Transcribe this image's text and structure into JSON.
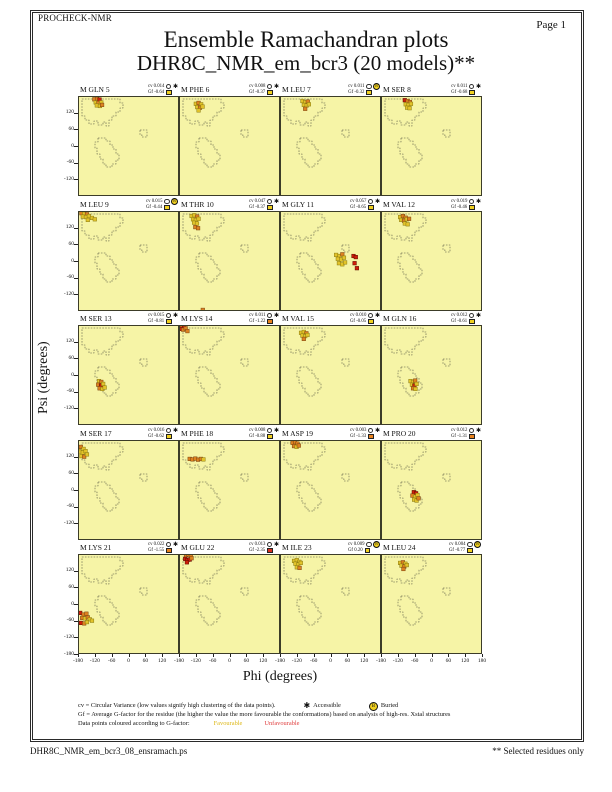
{
  "page": {
    "app_label": "PROCHECK-NMR",
    "page_label": "Page 1",
    "title": "Ensemble Ramachandran plots",
    "subtitle": "DHR8C_NMR_em_bcr3 (20 models)**",
    "footer_left": "DHR8C_NMR_em_bcr3_08_ensramach.ps",
    "footer_right": "** Selected residues only"
  },
  "labels": {
    "cv_prefix": "cv",
    "gf_prefix": "Gf"
  },
  "icons": {
    "accessible": "black-asterisk-star",
    "buried": "yellow-circled-b",
    "cv_qualifier": "small-open-circle"
  },
  "colors": {
    "plot_bg": "#f6f4a6",
    "point_yellow": "#e2c32a",
    "point_orange": "#dd8220",
    "point_red": "#cf1d0a",
    "region_outline": "#4a4a3a",
    "favourable_text": "#ddb818",
    "unfavourable_text": "#e04040"
  },
  "legend": {
    "cv_line": "cv = Circular Variance (low values signify high clustering of the data points).",
    "accessible_label": "Accessible",
    "buried_label": "Buried",
    "gf_line": "Gf = Average G-factor for the residue (the higher the value the more favourable the conformations) based on analysis of high-res. Xstal structures",
    "points_line": "Data points coloured according to G-factor:",
    "favourable_label": "Favourable",
    "unfavourable_label": "Unfavourable"
  },
  "chart_data": {
    "type": "scatter",
    "layout": "4x5-grid-ramachandran",
    "xlabel": "Phi (degrees)",
    "ylabel": "Psi (degrees)",
    "x_range": [
      -180,
      180
    ],
    "y_range": [
      -180,
      180
    ],
    "x_ticks": [
      -180,
      -120,
      -60,
      0,
      60,
      120
    ],
    "x_end_tick": 180,
    "y_ticks": [
      120,
      60,
      0,
      -60,
      -120
    ],
    "y_bottom_tick": -180,
    "point_colour_key": {
      "y": "favourable-yellow",
      "o": "mid-orange",
      "r": "unfavourable-red"
    },
    "subplots": [
      {
        "residue": "M GLN 5",
        "cv": "0.014",
        "gf": "-0.64",
        "access": "accessible",
        "gf_color": "yellow",
        "points": [
          [
            -122,
            168,
            "o"
          ],
          [
            -112,
            170,
            "o"
          ],
          [
            -103,
            167,
            "r"
          ],
          [
            -117,
            157,
            "y"
          ],
          [
            -107,
            155,
            "o"
          ],
          [
            -97,
            157,
            "y"
          ],
          [
            -113,
            146,
            "y"
          ],
          [
            -102,
            144,
            "y"
          ],
          [
            -94,
            148,
            "o"
          ]
        ]
      },
      {
        "residue": "M PHE 6",
        "cv": "0.008",
        "gf": "-0.37",
        "access": "accessible",
        "gf_color": "yellow",
        "points": [
          [
            -120,
            152,
            "y"
          ],
          [
            -110,
            155,
            "o"
          ],
          [
            -101,
            150,
            "y"
          ],
          [
            -115,
            140,
            "y"
          ],
          [
            -105,
            138,
            "o"
          ],
          [
            -96,
            142,
            "y"
          ],
          [
            -110,
            128,
            "y"
          ]
        ]
      },
      {
        "residue": "M LEU 7",
        "cv": "0.011",
        "gf": "-0.32",
        "access": "buried",
        "gf_color": "yellow",
        "points": [
          [
            -100,
            162,
            "y"
          ],
          [
            -90,
            158,
            "y"
          ],
          [
            -81,
            160,
            "o"
          ],
          [
            -95,
            148,
            "y"
          ],
          [
            -85,
            146,
            "y"
          ],
          [
            -77,
            150,
            "y"
          ],
          [
            -90,
            134,
            "o"
          ]
        ]
      },
      {
        "residue": "M SER 8",
        "cv": "0.011",
        "gf": "-0.68",
        "access": "accessible",
        "gf_color": "yellow",
        "points": [
          [
            -95,
            165,
            "r"
          ],
          [
            -85,
            162,
            "o"
          ],
          [
            -77,
            158,
            "o"
          ],
          [
            -92,
            150,
            "y"
          ],
          [
            -82,
            148,
            "y"
          ],
          [
            -73,
            152,
            "y"
          ],
          [
            -87,
            138,
            "y"
          ],
          [
            -78,
            136,
            "y"
          ]
        ]
      },
      {
        "residue": "M LEU 9",
        "cv": "0.015",
        "gf": "-0.44",
        "access": "buried",
        "gf_color": "yellow",
        "points": [
          [
            -168,
            172,
            "o"
          ],
          [
            -158,
            170,
            "y"
          ],
          [
            -148,
            168,
            "o"
          ],
          [
            -163,
            160,
            "y"
          ],
          [
            -152,
            158,
            "y"
          ],
          [
            -141,
            162,
            "y"
          ],
          [
            -130,
            155,
            "y"
          ],
          [
            -120,
            150,
            "y"
          ],
          [
            -145,
            148,
            "y"
          ]
        ]
      },
      {
        "residue": "M THR 10",
        "cv": "0.047",
        "gf": "-0.37",
        "access": "accessible",
        "gf_color": "yellow",
        "points": [
          [
            -135,
            162,
            "y"
          ],
          [
            -125,
            165,
            "y"
          ],
          [
            -115,
            160,
            "o"
          ],
          [
            -130,
            150,
            "y"
          ],
          [
            -120,
            148,
            "y"
          ],
          [
            -110,
            152,
            "y"
          ],
          [
            -126,
            138,
            "y"
          ],
          [
            -116,
            135,
            "y"
          ],
          [
            -122,
            122,
            "o"
          ],
          [
            -112,
            118,
            "o"
          ],
          [
            -95,
            -176,
            "o"
          ]
        ]
      },
      {
        "residue": "M GLY 11",
        "cv": "0.057",
        "gf": "-0.65",
        "access": "accessible",
        "gf_color": "yellow",
        "points": [
          [
            20,
            22,
            "y"
          ],
          [
            32,
            18,
            "y"
          ],
          [
            42,
            24,
            "o"
          ],
          [
            26,
            8,
            "y"
          ],
          [
            38,
            5,
            "y"
          ],
          [
            48,
            12,
            "y"
          ],
          [
            30,
            -8,
            "y"
          ],
          [
            42,
            -12,
            "y"
          ],
          [
            52,
            -5,
            "y"
          ],
          [
            82,
            18,
            "r"
          ],
          [
            90,
            14,
            "r"
          ],
          [
            86,
            -8,
            "r"
          ],
          [
            94,
            -26,
            "r"
          ]
        ]
      },
      {
        "residue": "M VAL 12",
        "cv": "0.019",
        "gf": "-0.46",
        "access": "accessible",
        "gf_color": "yellow",
        "points": [
          [
            -112,
            158,
            "y"
          ],
          [
            -102,
            162,
            "o"
          ],
          [
            -92,
            156,
            "o"
          ],
          [
            -108,
            148,
            "y"
          ],
          [
            -98,
            145,
            "o"
          ],
          [
            -88,
            150,
            "y"
          ],
          [
            -80,
            152,
            "o"
          ],
          [
            -95,
            135,
            "y"
          ],
          [
            -85,
            132,
            "y"
          ]
        ]
      },
      {
        "residue": "M SER 13",
        "cv": "0.015",
        "gf": "-0.81",
        "access": "accessible",
        "gf_color": "yellow",
        "points": [
          [
            -105,
            -22,
            "y"
          ],
          [
            -97,
            -25,
            "o"
          ],
          [
            -108,
            -35,
            "o"
          ],
          [
            -98,
            -38,
            "r"
          ],
          [
            -90,
            -32,
            "y"
          ],
          [
            -103,
            -48,
            "o"
          ],
          [
            -93,
            -50,
            "y"
          ],
          [
            -85,
            -45,
            "y"
          ]
        ]
      },
      {
        "residue": "M LYS 14",
        "cv": "0.011",
        "gf": "-1.22",
        "access": "accessible",
        "gf_color": "orange",
        "points": [
          [
            -178,
            176,
            "r"
          ],
          [
            -170,
            178,
            "o"
          ],
          [
            -162,
            174,
            "r"
          ],
          [
            -174,
            166,
            "r"
          ],
          [
            -165,
            163,
            "o"
          ],
          [
            -156,
            168,
            "o"
          ],
          [
            -150,
            158,
            "o"
          ]
        ]
      },
      {
        "residue": "M VAL 15",
        "cv": "0.010",
        "gf": "-0.05",
        "access": "accessible",
        "gf_color": "yellow",
        "points": [
          [
            -105,
            152,
            "y"
          ],
          [
            -95,
            155,
            "y"
          ],
          [
            -86,
            150,
            "o"
          ],
          [
            -100,
            142,
            "y"
          ],
          [
            -90,
            140,
            "y"
          ],
          [
            -82,
            144,
            "y"
          ],
          [
            -95,
            130,
            "o"
          ]
        ]
      },
      {
        "residue": "M GLN 16",
        "cv": "0.012",
        "gf": "-0.61",
        "access": "accessible",
        "gf_color": "yellow",
        "points": [
          [
            -75,
            -22,
            "y"
          ],
          [
            -66,
            -25,
            "y"
          ],
          [
            -58,
            -20,
            "o"
          ],
          [
            -70,
            -35,
            "y"
          ],
          [
            -61,
            -38,
            "r"
          ],
          [
            -53,
            -32,
            "y"
          ],
          [
            -66,
            -48,
            "o"
          ],
          [
            -57,
            -50,
            "y"
          ]
        ]
      },
      {
        "residue": "M SER 17",
        "cv": "0.016",
        "gf": "-0.62",
        "access": "accessible",
        "gf_color": "yellow",
        "points": [
          [
            -178,
            150,
            "y"
          ],
          [
            -170,
            155,
            "o"
          ],
          [
            -160,
            148,
            "y"
          ],
          [
            -173,
            138,
            "y"
          ],
          [
            -163,
            135,
            "y"
          ],
          [
            -153,
            140,
            "y"
          ],
          [
            -168,
            122,
            "y"
          ],
          [
            -158,
            120,
            "o"
          ],
          [
            -148,
            128,
            "y"
          ]
        ]
      },
      {
        "residue": "M PHE 18",
        "cv": "0.008",
        "gf": "-0.88",
        "access": "accessible",
        "gf_color": "yellow",
        "points": [
          [
            -142,
            112,
            "o"
          ],
          [
            -132,
            110,
            "o"
          ],
          [
            -122,
            113,
            "o"
          ],
          [
            -112,
            109,
            "o"
          ],
          [
            -102,
            112,
            "o"
          ],
          [
            -93,
            110,
            "y"
          ]
        ]
      },
      {
        "residue": "M ASP 19",
        "cv": "0.003",
        "gf": "-1.33",
        "access": "accessible",
        "gf_color": "orange",
        "points": [
          [
            -135,
            170,
            "o"
          ],
          [
            -126,
            172,
            "o"
          ],
          [
            -118,
            167,
            "o"
          ],
          [
            -130,
            158,
            "o"
          ],
          [
            -121,
            155,
            "y"
          ],
          [
            -113,
            160,
            "o"
          ]
        ]
      },
      {
        "residue": "M PRO 20",
        "cv": "0.012",
        "gf": "-1.31",
        "access": "accessible",
        "gf_color": "orange",
        "points": [
          [
            -63,
            -8,
            "r"
          ],
          [
            -55,
            -12,
            "r"
          ],
          [
            -68,
            -20,
            "o"
          ],
          [
            -58,
            -24,
            "y"
          ],
          [
            -50,
            -18,
            "y"
          ],
          [
            -62,
            -35,
            "y"
          ],
          [
            -53,
            -38,
            "y"
          ],
          [
            -46,
            -30,
            "o"
          ]
        ]
      },
      {
        "residue": "M LYS 21",
        "cv": "0.022",
        "gf": "-1.55",
        "access": "accessible",
        "gf_color": "orange",
        "points": [
          [
            -172,
            -32,
            "r"
          ],
          [
            -160,
            -38,
            "o"
          ],
          [
            -150,
            -35,
            "o"
          ],
          [
            -165,
            -50,
            "o"
          ],
          [
            -155,
            -52,
            "y"
          ],
          [
            -145,
            -48,
            "o"
          ],
          [
            -138,
            -55,
            "y"
          ],
          [
            -170,
            -68,
            "r"
          ],
          [
            -158,
            -70,
            "o"
          ],
          [
            -148,
            -65,
            "y"
          ],
          [
            -130,
            -60,
            "y"
          ]
        ]
      },
      {
        "residue": "M GLU 22",
        "cv": "0.013",
        "gf": "-2.35",
        "access": "accessible",
        "gf_color": "red",
        "points": [
          [
            -155,
            176,
            "o"
          ],
          [
            -146,
            178,
            "o"
          ],
          [
            -138,
            172,
            "o"
          ],
          [
            -158,
            162,
            "r"
          ],
          [
            -150,
            158,
            "r"
          ],
          [
            -142,
            160,
            "r"
          ],
          [
            -152,
            150,
            "r"
          ],
          [
            -135,
            165,
            "o"
          ]
        ]
      },
      {
        "residue": "M ILE 23",
        "cv": "0.009",
        "gf": "0.20",
        "access": "buried",
        "gf_color": "yellow",
        "points": [
          [
            -130,
            155,
            "y"
          ],
          [
            -120,
            158,
            "y"
          ],
          [
            -111,
            152,
            "y"
          ],
          [
            -125,
            145,
            "y"
          ],
          [
            -115,
            142,
            "y"
          ],
          [
            -106,
            148,
            "y"
          ],
          [
            -120,
            132,
            "y"
          ],
          [
            -110,
            130,
            "o"
          ]
        ]
      },
      {
        "residue": "M LEU 24",
        "cv": "0.004",
        "gf": "-0.77",
        "access": "buried",
        "gf_color": "yellow",
        "points": [
          [
            -112,
            148,
            "y"
          ],
          [
            -102,
            150,
            "o"
          ],
          [
            -93,
            145,
            "y"
          ],
          [
            -107,
            138,
            "y"
          ],
          [
            -97,
            135,
            "o"
          ],
          [
            -88,
            140,
            "y"
          ],
          [
            -100,
            126,
            "o"
          ]
        ]
      }
    ]
  }
}
